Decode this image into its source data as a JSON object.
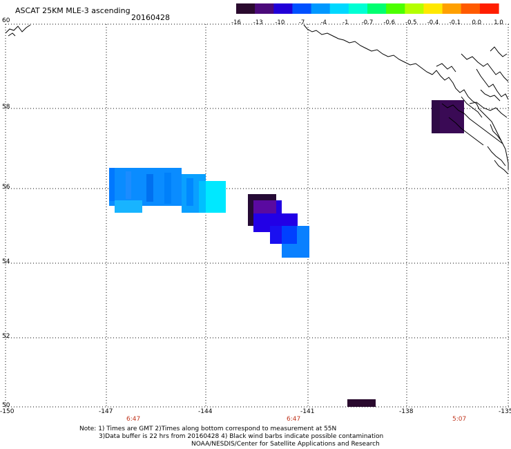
{
  "header": {
    "title": "ASCAT 25KM MLE-3 ascending",
    "date": "20160428"
  },
  "colorbar": {
    "colors": [
      "#2a0a2e",
      "#4b0a7a",
      "#2100d8",
      "#0050ff",
      "#0098ff",
      "#00d8ff",
      "#00ffd4",
      "#00ff70",
      "#4cff00",
      "#b4ff00",
      "#ffe800",
      "#ffa000",
      "#ff5a00",
      "#ff1e00"
    ],
    "labels": [
      "-16",
      "-13",
      "-10",
      "-7",
      "-4",
      "-1",
      "-0.7",
      "-0.6",
      "-0.5",
      "-0.4",
      "-0.1",
      "0.0",
      "1.0"
    ]
  },
  "axes": {
    "lat_labels": [
      "60",
      "58",
      "56",
      "54",
      "52",
      "50"
    ],
    "lon_labels": [
      "-150",
      "-147",
      "-144",
      "-141",
      "-138",
      "-135"
    ]
  },
  "times": [
    "6:47",
    "6:47",
    "5:07"
  ],
  "notes": {
    "line1": "Note: 1) Times are GMT 2)Times along bottom correspond to measurement at 55N",
    "line2": "3)Data buffer is 22 hrs from 20160428 4) Black wind barbs indicate possible contamination",
    "line3": "NOAA/NESDIS/Center for Satellite Applications and Research"
  }
}
